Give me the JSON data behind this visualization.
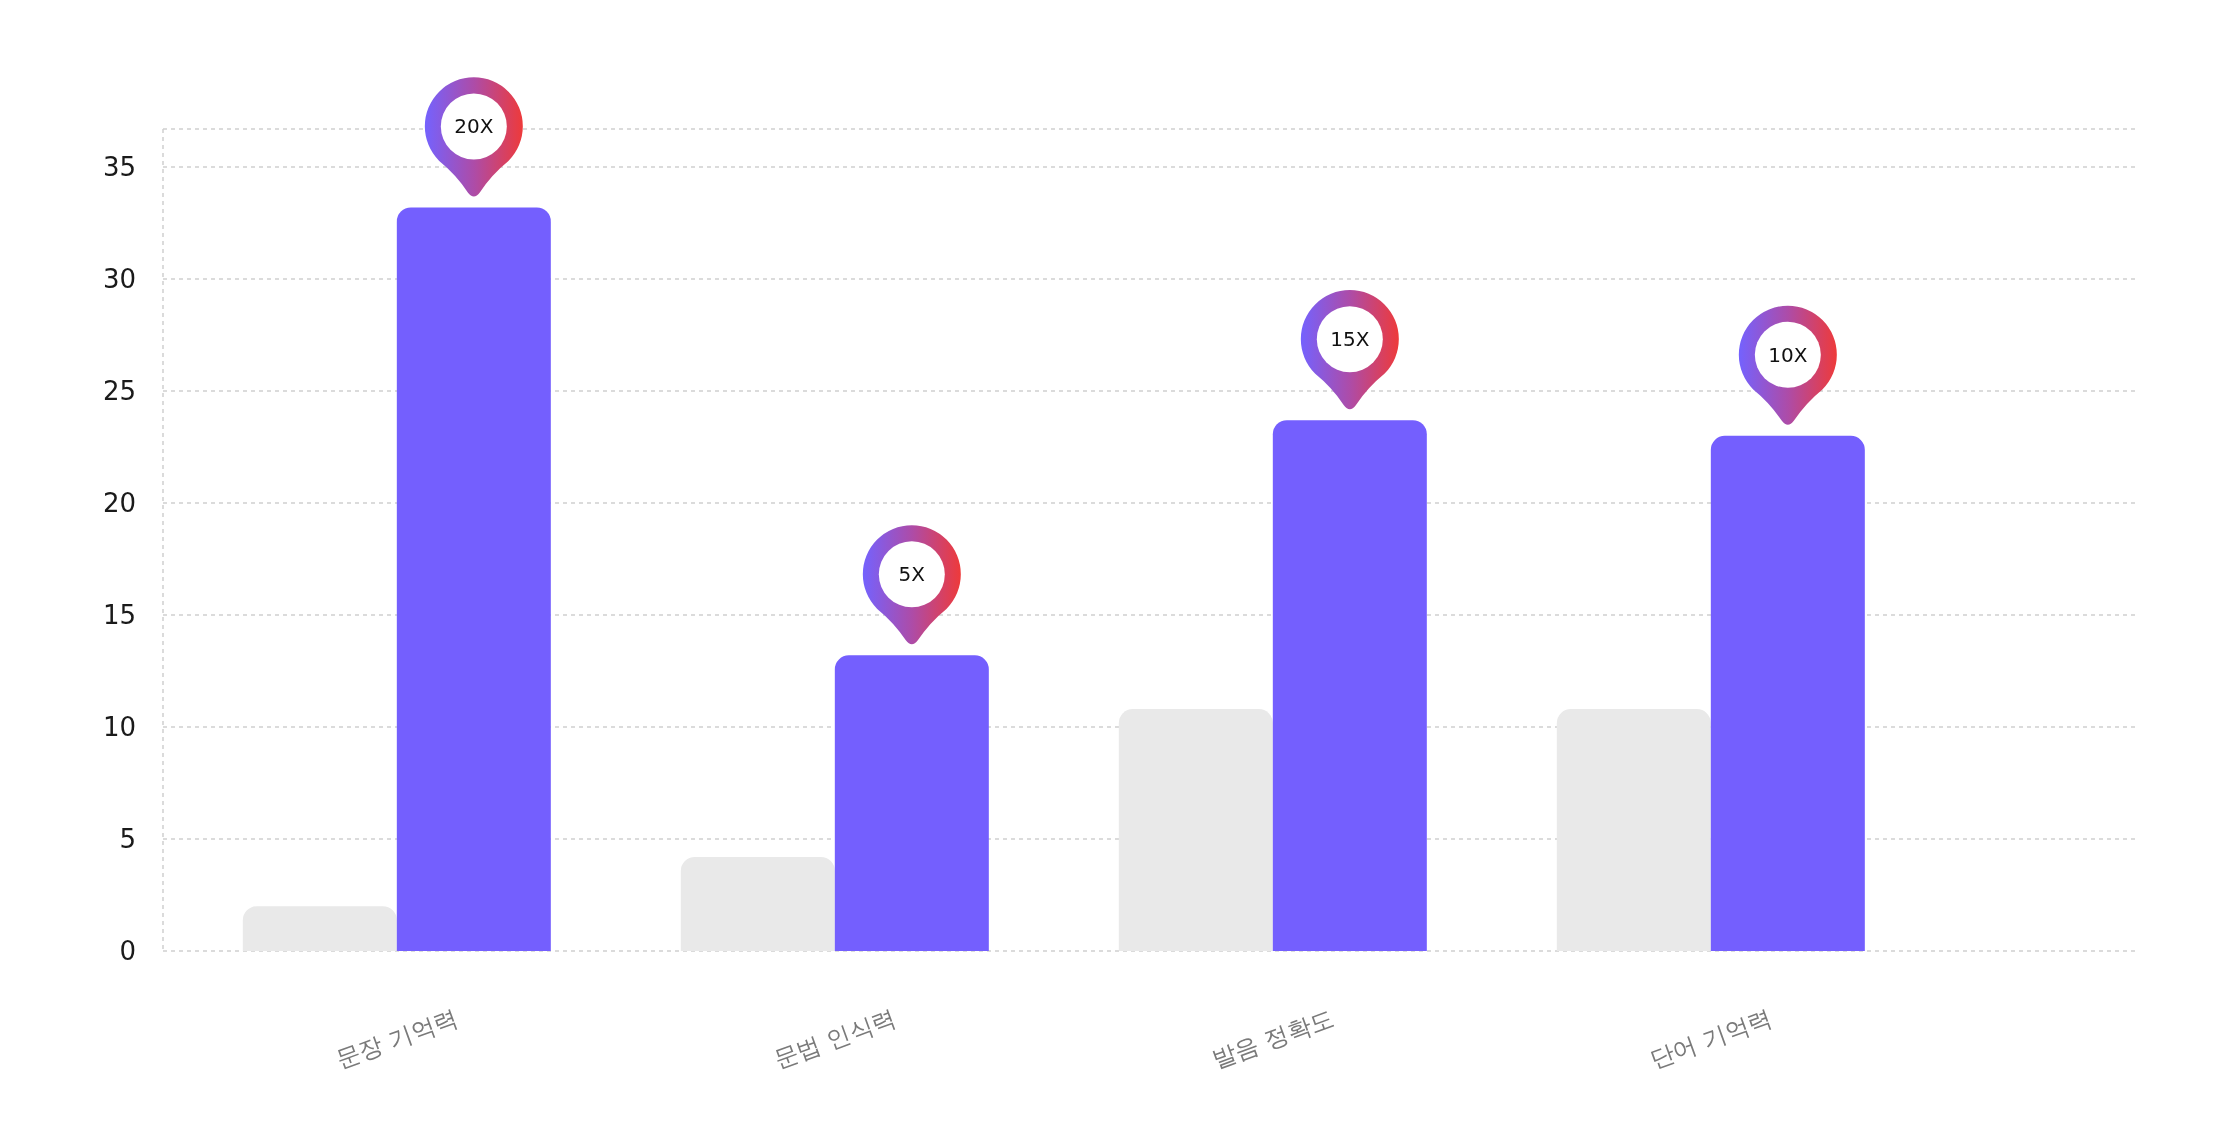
{
  "chart_data": {
    "type": "bar",
    "categories": [
      "문장 기억력",
      "문법 인식력",
      "발음 정확도",
      "단어 기억력"
    ],
    "series": [
      {
        "color": "#e9e9e9",
        "values": [
          2,
          4.2,
          10.8,
          10.8
        ]
      },
      {
        "color": "#745ffe",
        "values": [
          33.2,
          13.2,
          23.7,
          23
        ]
      }
    ],
    "annotations": [
      "20X",
      "5X",
      "15X",
      "10X"
    ],
    "ylim": [
      0,
      36.7
    ],
    "yticks": [
      0,
      5,
      10,
      15,
      20,
      25,
      30,
      35
    ],
    "grid": "y"
  }
}
